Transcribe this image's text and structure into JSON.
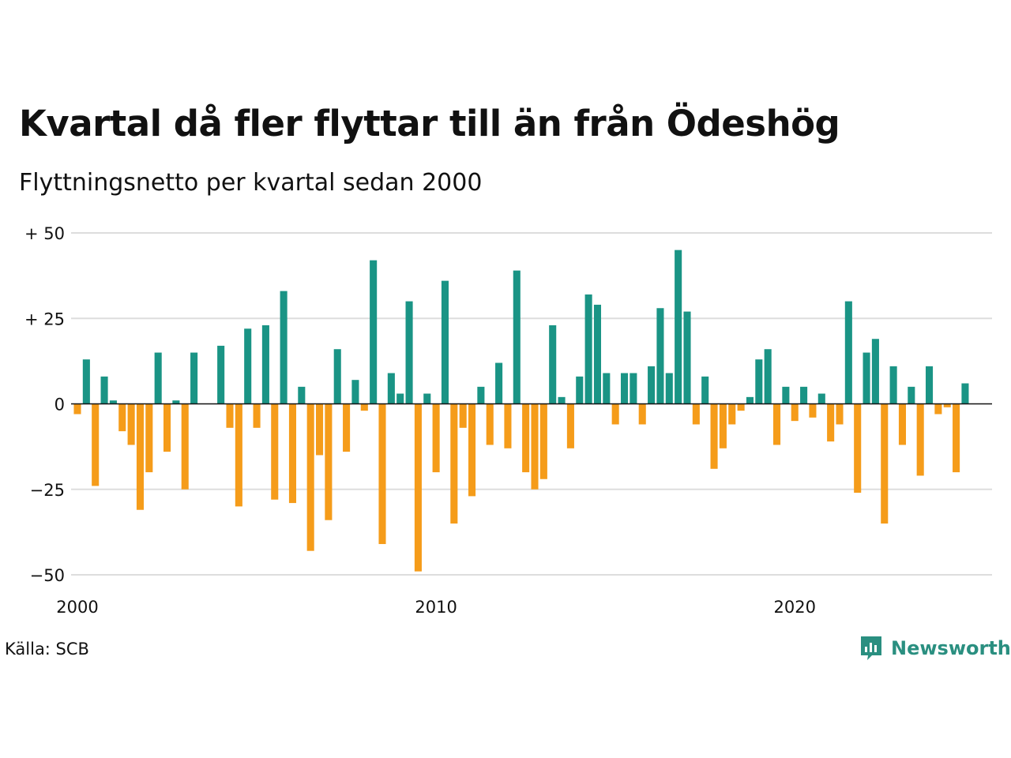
{
  "title": "Kvartal då fler flyttar till än från Ödeshög",
  "subtitle": "Flyttningsnetto per kvartal sedan 2000",
  "source": "Källa: SCB",
  "brand": {
    "name": "Newsworthy",
    "icon": "newsworthy-logo-icon"
  },
  "colors": {
    "positive": "#1a9485",
    "negative": "#f59c1a",
    "grid": "#dddddd",
    "zero": "#111111"
  },
  "chart_data": {
    "type": "bar",
    "x_start": 2000,
    "x_step": 0.25,
    "xlim": [
      2000,
      2025.5
    ],
    "ylim": [
      -50,
      50
    ],
    "y_ticks": [
      50,
      25,
      0,
      -25,
      -50
    ],
    "y_tick_labels": [
      "+ 50",
      "+ 25",
      "0",
      "−25",
      "−50"
    ],
    "x_ticks": [
      2000,
      2010,
      2020
    ],
    "x_tick_labels": [
      "2000",
      "2010",
      "2020"
    ],
    "grid": true,
    "legend": "none",
    "values": [
      -3,
      13,
      -24,
      8,
      1,
      -8,
      -12,
      -31,
      -20,
      15,
      -14,
      1,
      -25,
      15,
      0,
      0,
      17,
      -7,
      -30,
      22,
      -7,
      23,
      -28,
      33,
      -29,
      5,
      -43,
      -15,
      -34,
      16,
      -14,
      7,
      -2,
      42,
      -41,
      9,
      3,
      30,
      -49,
      3,
      -20,
      36,
      -35,
      -7,
      -27,
      5,
      -12,
      12,
      -13,
      39,
      -20,
      -25,
      -22,
      23,
      2,
      -13,
      8,
      32,
      29,
      9,
      -6,
      9,
      9,
      -6,
      11,
      28,
      9,
      45,
      27,
      -6,
      8,
      -19,
      -13,
      -6,
      -2,
      2,
      13,
      16,
      -12,
      5,
      -5,
      5,
      -4,
      3,
      -11,
      -6,
      30,
      -26,
      15,
      19,
      -35,
      11,
      -12,
      5,
      -21,
      11,
      -3,
      -1,
      -20,
      6
    ]
  }
}
